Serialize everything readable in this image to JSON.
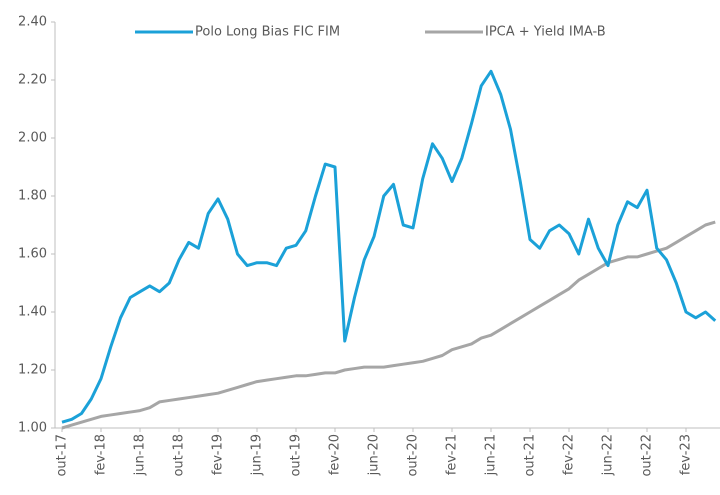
{
  "chart_data": {
    "type": "line",
    "categories": [
      "out-17",
      null,
      null,
      null,
      "fev-18",
      null,
      null,
      null,
      "jun-18",
      null,
      null,
      null,
      "out-18",
      null,
      null,
      null,
      "fev-19",
      null,
      null,
      null,
      "jun-19",
      null,
      null,
      null,
      "out-19",
      null,
      null,
      null,
      "fev-20",
      null,
      null,
      null,
      "jun-20",
      null,
      null,
      null,
      "out-20",
      null,
      null,
      null,
      "fev-21",
      null,
      null,
      null,
      "jun-21",
      null,
      null,
      null,
      "out-21",
      null,
      null,
      null,
      "fev-22",
      null,
      null,
      null,
      "jun-22",
      null,
      null,
      null,
      "out-22",
      null,
      null,
      null,
      "fev-23",
      null,
      null,
      null
    ],
    "series": [
      {
        "name": "Polo Long Bias FIC FIM",
        "color": "#1ba1d8",
        "values": [
          1.02,
          1.03,
          1.05,
          1.1,
          1.17,
          1.28,
          1.38,
          1.45,
          1.47,
          1.49,
          1.47,
          1.5,
          1.58,
          1.64,
          1.62,
          1.74,
          1.79,
          1.72,
          1.6,
          1.56,
          1.57,
          1.57,
          1.56,
          1.62,
          1.63,
          1.68,
          1.8,
          1.91,
          1.9,
          1.3,
          1.45,
          1.58,
          1.66,
          1.8,
          1.84,
          1.7,
          1.69,
          1.86,
          1.98,
          1.93,
          1.85,
          1.93,
          2.05,
          2.18,
          2.23,
          2.15,
          2.03,
          1.85,
          1.65,
          1.62,
          1.68,
          1.7,
          1.67,
          1.6,
          1.72,
          1.62,
          1.56,
          1.7,
          1.78,
          1.76,
          1.82,
          1.62,
          1.58,
          1.5,
          1.4,
          1.38,
          1.4,
          1.37
        ]
      },
      {
        "name": "IPCA + Yield IMA-B",
        "color": "#a6a6a6",
        "values": [
          1.0,
          1.01,
          1.02,
          1.03,
          1.04,
          1.045,
          1.05,
          1.055,
          1.06,
          1.07,
          1.09,
          1.095,
          1.1,
          1.105,
          1.11,
          1.115,
          1.12,
          1.13,
          1.14,
          1.15,
          1.16,
          1.165,
          1.17,
          1.175,
          1.18,
          1.18,
          1.185,
          1.19,
          1.19,
          1.2,
          1.205,
          1.21,
          1.21,
          1.21,
          1.215,
          1.22,
          1.225,
          1.23,
          1.24,
          1.25,
          1.27,
          1.28,
          1.29,
          1.31,
          1.32,
          1.34,
          1.36,
          1.38,
          1.4,
          1.42,
          1.44,
          1.46,
          1.48,
          1.51,
          1.53,
          1.55,
          1.57,
          1.58,
          1.59,
          1.59,
          1.6,
          1.61,
          1.62,
          1.64,
          1.66,
          1.68,
          1.7,
          1.71
        ]
      }
    ],
    "ylim": [
      1,
      2.4
    ],
    "yticks": [
      {
        "value": 1,
        "label": "1.00"
      },
      {
        "value": 1.2,
        "label": "1.20"
      },
      {
        "value": 1.4,
        "label": "1.40"
      },
      {
        "value": 1.6,
        "label": "1.60"
      },
      {
        "value": 1.8,
        "label": "1.80"
      },
      {
        "value": 2,
        "label": "2.00"
      },
      {
        "value": 2.2,
        "label": "2.20"
      },
      {
        "value": 2.4,
        "label": "2.40"
      }
    ],
    "grid": false,
    "legend": "top"
  }
}
